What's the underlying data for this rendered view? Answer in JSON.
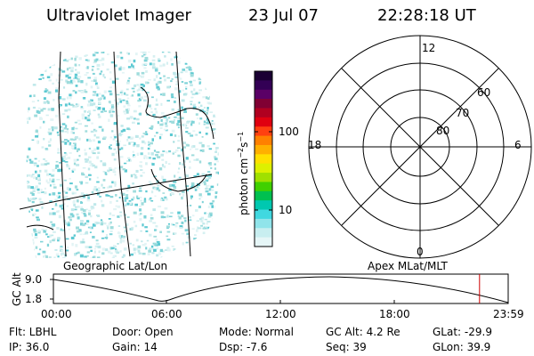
{
  "header": {
    "instrument": "Ultraviolet Imager",
    "date": "23 Jul 07",
    "time": "22:28:18 UT"
  },
  "left_panel": {
    "label": "Geographic Lat/Lon",
    "speckle_color": "#9fdcdc",
    "coastline_color": "#000000"
  },
  "colorbar": {
    "unit_label": "photon cm",
    "unit_exp1": "−2",
    "unit_mid": "s",
    "unit_exp2": "−1",
    "tick_100": "100",
    "tick_10": "10",
    "colors_top_to_bottom": [
      "#1a0033",
      "#330055",
      "#5a0066",
      "#800033",
      "#b00020",
      "#e00010",
      "#ff4010",
      "#ff8000",
      "#ffb000",
      "#ffe000",
      "#ddf000",
      "#a0e000",
      "#40d000",
      "#00c050",
      "#00c8b0",
      "#40d8e0",
      "#90e4ea",
      "#c8eef0",
      "#e6f6f7"
    ]
  },
  "right_panel": {
    "label": "Apex MLat/MLT",
    "mlt_top": "12",
    "mlt_left": "18",
    "mlt_right": "6",
    "mlt_bottom": "0",
    "lat_60": "60",
    "lat_70": "70",
    "lat_80": "80"
  },
  "altitude_strip": {
    "axis_label": "GC Alt",
    "tick_top": "9.0",
    "tick_bottom": "1.8",
    "time_ticks": [
      "00:00",
      "06:00",
      "12:00",
      "18:00",
      "23:59"
    ],
    "marker_color": "#cc0000",
    "current_time_fraction": 0.937
  },
  "footer": {
    "flt": "Flt: LBHL",
    "ip": "IP: 36.0",
    "door": "Door: Open",
    "gain": "Gain: 14",
    "mode": "Mode: Normal",
    "dsp": "Dsp:   -7.6",
    "gc_alt": "GC Alt: 4.2 Re",
    "seq": "Seq: 39",
    "glat": "GLat: -29.9",
    "glon": "GLon:  39.9"
  }
}
